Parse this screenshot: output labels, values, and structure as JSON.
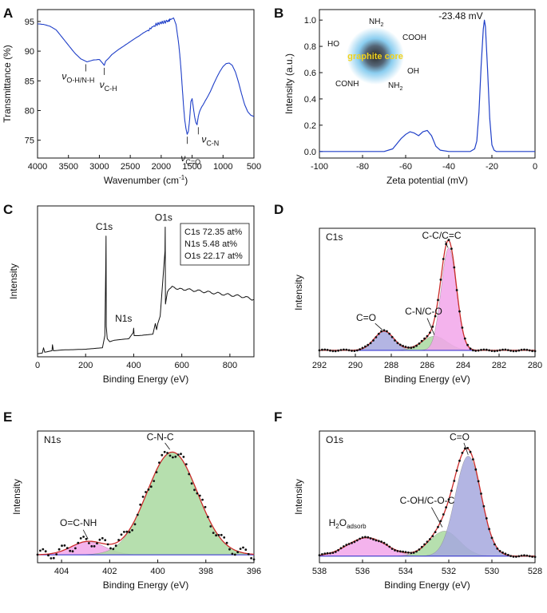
{
  "colors": {
    "line_blue": "#1f3fc8",
    "fit_red": "#cc2a2a",
    "dots": "#111111",
    "pink": "#f2a6ea",
    "green": "#a9d9a0",
    "blue_fill": "#a6a8de",
    "baseline": "#2a2ad0",
    "ink": "#111111",
    "glow": "#7ec8ee"
  },
  "chart_data": [
    {
      "panel": "A",
      "type": "line",
      "xlabel": "Wavenumber (cm",
      "xlabel_sup": "-1",
      "xlabel_end": ")",
      "ylabel": "Transmittance (%)",
      "xlim": [
        4000,
        500
      ],
      "ylim": [
        72,
        97
      ],
      "xticks": [
        4000,
        3500,
        3000,
        2500,
        2000,
        1500,
        1000,
        500
      ],
      "yticks": [
        75,
        80,
        85,
        90,
        95
      ],
      "x": [
        4000,
        3900,
        3800,
        3700,
        3600,
        3500,
        3400,
        3300,
        3200,
        3100,
        3000,
        2950,
        2920,
        2900,
        2870,
        2850,
        2800,
        2700,
        2600,
        2500,
        2400,
        2350,
        2300,
        2200,
        2100,
        2000,
        1900,
        1850,
        1800,
        1760,
        1740,
        1720,
        1700,
        1680,
        1660,
        1640,
        1620,
        1600,
        1580,
        1560,
        1540,
        1520,
        1500,
        1480,
        1460,
        1440,
        1420,
        1400,
        1380,
        1360,
        1340,
        1320,
        1300,
        1250,
        1200,
        1150,
        1100,
        1050,
        1000,
        950,
        900,
        850,
        800,
        750,
        700,
        650,
        600,
        550,
        500
      ],
      "y": [
        94.6,
        94.5,
        94.2,
        93.6,
        92.3,
        91.0,
        89.7,
        88.7,
        88.2,
        88.5,
        88.6,
        88.0,
        87.6,
        88.3,
        88.6,
        88.8,
        89.4,
        90.2,
        90.9,
        91.6,
        92.3,
        92.6,
        93.0,
        93.6,
        94.4,
        94.8,
        95.0,
        95.3,
        95.6,
        94.5,
        93.0,
        91.5,
        89.5,
        87.0,
        84.0,
        81.0,
        78.5,
        77.0,
        76.0,
        76.5,
        78.5,
        81.5,
        82.0,
        80.5,
        79.0,
        78.0,
        77.6,
        79.0,
        79.8,
        80.3,
        80.7,
        81.0,
        81.4,
        82.3,
        83.3,
        84.5,
        85.6,
        86.6,
        87.4,
        87.9,
        88.0,
        87.6,
        86.5,
        84.8,
        82.8,
        81.0,
        79.8,
        79.2,
        79.0
      ],
      "annotations": [
        {
          "label": "ν",
          "sub": "O-H/N-H",
          "x": 3220,
          "y": 88.2
        },
        {
          "label": "ν",
          "sub": "C-H",
          "x": 2920,
          "y": 87.6
        },
        {
          "label": "ν",
          "sub": "C=O",
          "x": 1580,
          "y": 76.0
        },
        {
          "label": "ν",
          "sub": "C-N",
          "x": 1400,
          "y": 77.6
        }
      ]
    },
    {
      "panel": "B",
      "type": "line",
      "xlabel": "Zeta potential (mV)",
      "ylabel": "Intensity (a.u.)",
      "xlim": [
        -100,
        0
      ],
      "ylim": [
        -0.05,
        1.08
      ],
      "xticks": [
        -100,
        -80,
        -60,
        -40,
        -20,
        0
      ],
      "yticks": [
        0.0,
        0.2,
        0.4,
        0.6,
        0.8,
        1.0
      ],
      "x": [
        -100,
        -70,
        -66,
        -64,
        -62,
        -60,
        -58,
        -56,
        -54,
        -52,
        -50,
        -48,
        -46,
        -44,
        -40,
        -30,
        -28,
        -27,
        -26,
        -25,
        -24,
        -23.48,
        -23,
        -22,
        -21,
        -20,
        -19,
        -18,
        -10,
        0
      ],
      "y": [
        0,
        0,
        0.02,
        0.06,
        0.1,
        0.13,
        0.15,
        0.14,
        0.12,
        0.15,
        0.16,
        0.12,
        0.04,
        0.01,
        0,
        0,
        0.02,
        0.08,
        0.3,
        0.65,
        0.93,
        1.0,
        0.95,
        0.62,
        0.25,
        0.05,
        0.01,
        0,
        0,
        0
      ],
      "peak_label": "-23.48 mV",
      "inset": {
        "core": "graphite core",
        "groups": [
          {
            "t": "NH",
            "s": "2"
          },
          {
            "t": "COOH",
            "s": ""
          },
          {
            "t": "HO",
            "s": ""
          },
          {
            "t": "OH",
            "s": ""
          },
          {
            "t": "CONH",
            "s": ""
          },
          {
            "t": "NH",
            "s": "2"
          }
        ]
      }
    },
    {
      "panel": "C",
      "type": "line",
      "xlabel": "Binding Energy (eV)",
      "ylabel": "Intensity",
      "xlim": [
        0,
        900
      ],
      "ylim": [
        0,
        1.0
      ],
      "xticks": [
        0,
        200,
        400,
        600,
        800
      ],
      "x": [
        0,
        20,
        25,
        30,
        60,
        62,
        66,
        100,
        200,
        270,
        280,
        284,
        285,
        286,
        290,
        300,
        320,
        380,
        398,
        400,
        402,
        420,
        480,
        490,
        495,
        500,
        510,
        530,
        531,
        532,
        540,
        560,
        600,
        650,
        700,
        750,
        800,
        850,
        900
      ],
      "y": [
        0.02,
        0.025,
        0.06,
        0.03,
        0.04,
        0.08,
        0.04,
        0.045,
        0.05,
        0.06,
        0.14,
        0.62,
        0.8,
        0.2,
        0.12,
        0.1,
        0.11,
        0.12,
        0.16,
        0.19,
        0.14,
        0.14,
        0.15,
        0.22,
        0.18,
        0.22,
        0.27,
        0.7,
        0.86,
        0.35,
        0.43,
        0.46,
        0.45,
        0.44,
        0.43,
        0.42,
        0.41,
        0.4,
        0.38
      ],
      "peak_labels": [
        {
          "label": "C1s",
          "x": 284,
          "y": 0.8
        },
        {
          "label": "N1s",
          "x": 400,
          "y": 0.19
        },
        {
          "label": "O1s",
          "x": 531,
          "y": 0.86
        }
      ],
      "legend_lines": [
        "C1s 72.35 at%",
        "N1s 5.48 at%",
        "O1s 22.17 at%"
      ]
    },
    {
      "panel": "D",
      "type": "area",
      "title": "C1s",
      "xlabel": "Binding Energy (eV)",
      "ylabel": "Intensity",
      "xlim": [
        292,
        280
      ],
      "ylim": [
        0,
        1.0
      ],
      "xticks": [
        292,
        290,
        288,
        286,
        284,
        282,
        280
      ],
      "baseline": 0.05,
      "components": [
        {
          "name": "C=O",
          "center": 288.4,
          "height": 0.15,
          "sigma": 0.55,
          "color_key": "blue_fill"
        },
        {
          "name": "C-N/C-O",
          "center": 285.6,
          "height": 0.11,
          "sigma": 0.7,
          "color_key": "green"
        },
        {
          "name": "C-C/C=C",
          "center": 284.8,
          "height": 0.8,
          "sigma": 0.42,
          "color_key": "pink"
        }
      ],
      "peak_labels": [
        {
          "label": "C=O",
          "x": 289.4,
          "y": 0.28
        },
        {
          "label": "C-N/C-O",
          "x": 286.2,
          "y": 0.33
        },
        {
          "label": "C-C/C=C",
          "x": 285.2,
          "y": 0.92
        }
      ]
    },
    {
      "panel": "E",
      "type": "area",
      "title": "N1s",
      "xlabel": "Binding Energy (eV)",
      "ylabel": "Intensity",
      "xlim": [
        405,
        396
      ],
      "ylim": [
        0,
        1.0
      ],
      "xticks": [
        404,
        402,
        400,
        398,
        396
      ],
      "baseline": 0.06,
      "components": [
        {
          "name": "O=C-NH",
          "center": 402.9,
          "height": 0.1,
          "sigma": 0.7,
          "color_key": "pink"
        },
        {
          "name": "C-N-C",
          "center": 399.4,
          "height": 0.78,
          "sigma": 1.05,
          "color_key": "green"
        }
      ],
      "peak_labels": [
        {
          "label": "O=C-NH",
          "x": 403.3,
          "y": 0.28
        },
        {
          "label": "C-N-C",
          "x": 399.9,
          "y": 0.93
        }
      ]
    },
    {
      "panel": "F",
      "type": "area",
      "title": "O1s",
      "xlabel": "Binding Energy (eV)",
      "ylabel": "Intensity",
      "xlim": [
        538,
        528
      ],
      "ylim": [
        0,
        1.0
      ],
      "xticks": [
        538,
        536,
        534,
        532,
        530,
        528
      ],
      "baseline": 0.05,
      "components": [
        {
          "name": "H2Oadsorb",
          "center": 535.8,
          "height": 0.14,
          "sigma": 0.9,
          "color_key": "pink"
        },
        {
          "name": "C-OH/C-O-C",
          "center": 532.2,
          "height": 0.19,
          "sigma": 0.7,
          "color_key": "green"
        },
        {
          "name": "C=O",
          "center": 531.1,
          "height": 0.76,
          "sigma": 0.6,
          "color_key": "blue_fill"
        }
      ],
      "peak_labels": [
        {
          "label": "H",
          "sub": "2",
          "tail": "O",
          "sub2": "adsorb",
          "x": 536.7,
          "y": 0.28
        },
        {
          "label": "C-OH/C-O-C",
          "x": 533.0,
          "y": 0.45
        },
        {
          "label": "C=O",
          "x": 531.5,
          "y": 0.93
        }
      ]
    }
  ],
  "panel_letters": [
    "A",
    "B",
    "C",
    "D",
    "E",
    "F"
  ]
}
